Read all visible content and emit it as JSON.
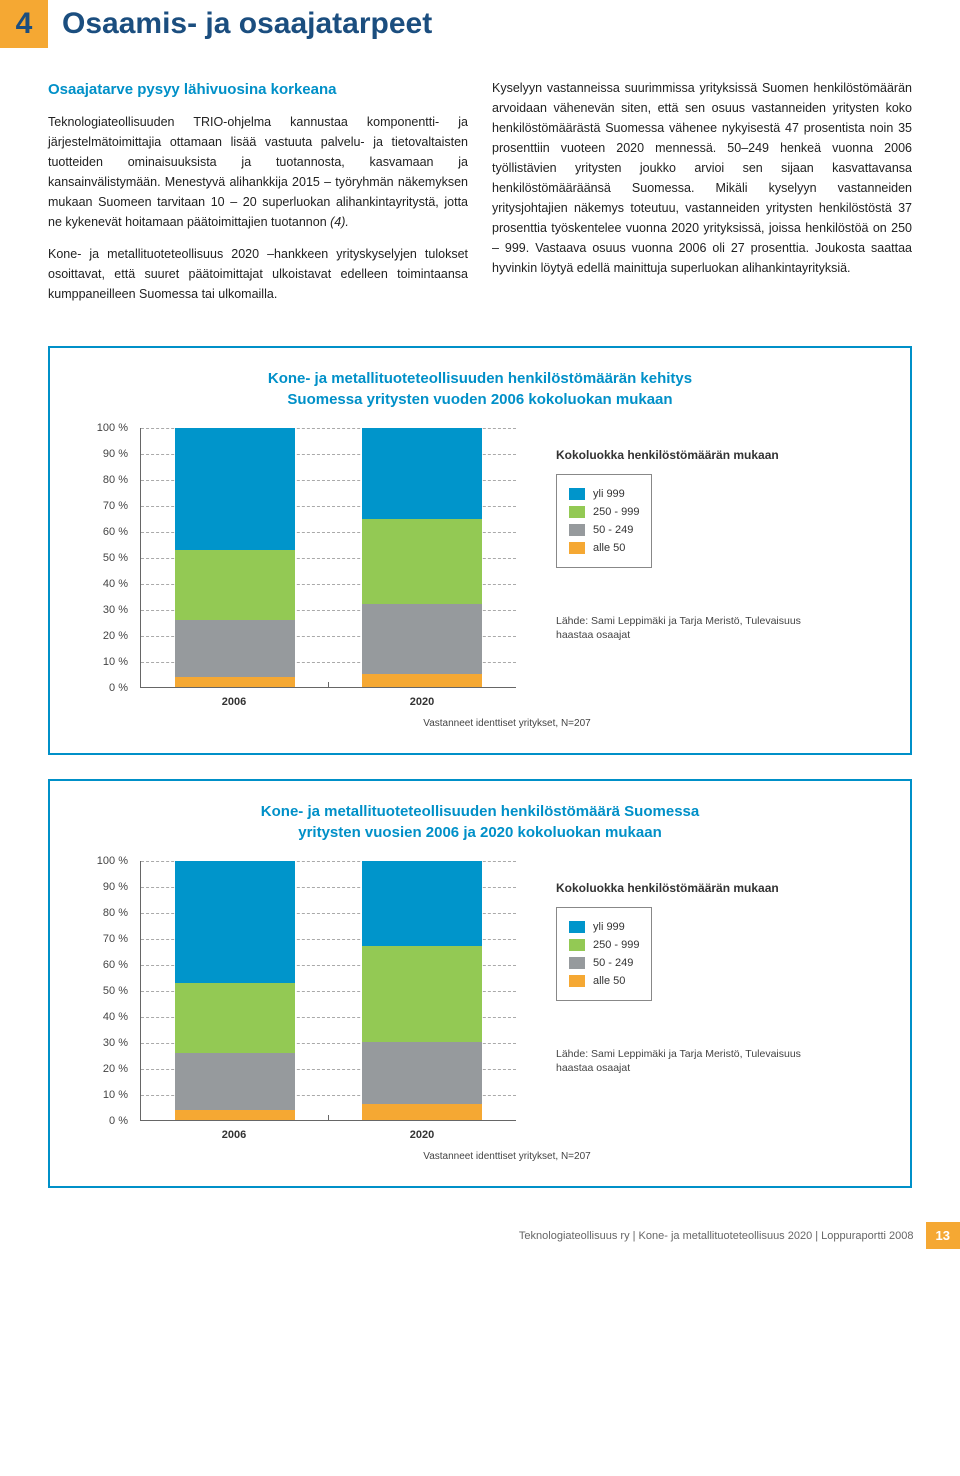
{
  "header": {
    "number": "4",
    "title": "Osaamis- ja osaajatarpeet"
  },
  "text": {
    "subheading": "Osaajatarve pysyy lähivuosina korkeana",
    "left_p1": "Teknologiateollisuuden TRIO-ohjelma kannustaa komponentti- ja järjestelmätoimittajia ottamaan lisää vastuuta palvelu- ja tietovaltaisten tuotteiden ominaisuuksista ja tuotannosta, kasvamaan ja kansainvälistymään. Menestyvä alihankkija 2015 – työryhmän näkemyksen mukaan Suomeen tarvitaan 10 – 20 superluokan alihankintayritystä, jotta ne kykenevät hoitamaan päätoimittajien tuotannon ",
    "left_italic": "(4).",
    "left_p2": "Kone- ja metallituoteteollisuus 2020 –hankkeen yrityskyselyjen tulokset osoittavat, että suuret päätoimittajat ulkoistavat edelleen toimintaansa kumppaneilleen Suomessa tai ulkomailla.",
    "right_p1": "Kyselyyn vastanneissa suurimmissa yrityksissä Suomen henkilöstömäärän arvoidaan vähenevän siten, että sen osuus vastanneiden yritysten koko henkilöstömäärästä Suomessa vähenee nykyisestä 47 prosentista noin 35 prosenttiin vuoteen 2020 mennessä. 50–249 henkeä vuonna 2006 työllistävien yritysten joukko arvioi sen sijaan kasvattavansa henkilöstömääräänsä Suomessa. Mikäli kyselyyn vastanneiden yritysjohtajien näkemys toteutuu, vastanneiden yritysten henkilöstöstä 37 prosenttia työskentelee vuonna 2020 yrityksissä, joissa henkilöstöä on 250 – 999. Vastaava osuus vuonna 2006 oli 27 prosenttia. Joukosta saattaa hyvinkin löytyä edellä mainittuja superluokan alihankintayrityksiä."
  },
  "chart1": {
    "title_line1": "Kone- ja metallituoteteollisuuden henkilöstömäärän kehitys",
    "title_line2": "Suomessa yritysten vuoden 2006 kokoluokan mukaan",
    "ylim": [
      0,
      100
    ],
    "ytick_step": 10,
    "y_suffix": " %",
    "x_labels": [
      "2006",
      "2020"
    ],
    "x_caption": "Vastanneet identtiset yritykset, N=207",
    "series": [
      {
        "label": "yli 999",
        "color": "#0095cb"
      },
      {
        "label": "250 - 999",
        "color": "#93c954"
      },
      {
        "label": "50 - 249",
        "color": "#969a9d"
      },
      {
        "label": "alle 50",
        "color": "#f5a833"
      }
    ],
    "bars": [
      {
        "x": "2006",
        "segments": [
          {
            "series": 3,
            "value": 4
          },
          {
            "series": 2,
            "value": 22
          },
          {
            "series": 1,
            "value": 27
          },
          {
            "series": 0,
            "value": 47
          }
        ]
      },
      {
        "x": "2020",
        "segments": [
          {
            "series": 3,
            "value": 5
          },
          {
            "series": 2,
            "value": 27
          },
          {
            "series": 1,
            "value": 33
          },
          {
            "series": 0,
            "value": 35
          }
        ]
      }
    ],
    "legend_title": "Kokoluokka henkilöstömäärän mukaan",
    "source": "Lähde: Sami Leppimäki ja Tarja Meristö, Tulevaisuus haastaa osaajat"
  },
  "chart2": {
    "title_line1": "Kone- ja metallituoteteollisuuden henkilöstömäärä Suomessa",
    "title_line2": "yritysten vuosien 2006 ja 2020 kokoluokan mukaan",
    "ylim": [
      0,
      100
    ],
    "ytick_step": 10,
    "y_suffix": " %",
    "x_labels": [
      "2006",
      "2020"
    ],
    "x_caption": "Vastanneet identtiset yritykset, N=207",
    "series": [
      {
        "label": "yli 999",
        "color": "#0095cb"
      },
      {
        "label": "250 - 999",
        "color": "#93c954"
      },
      {
        "label": "50 - 249",
        "color": "#969a9d"
      },
      {
        "label": "alle 50",
        "color": "#f5a833"
      }
    ],
    "bars": [
      {
        "x": "2006",
        "segments": [
          {
            "series": 3,
            "value": 4
          },
          {
            "series": 2,
            "value": 22
          },
          {
            "series": 1,
            "value": 27
          },
          {
            "series": 0,
            "value": 47
          }
        ]
      },
      {
        "x": "2020",
        "segments": [
          {
            "series": 3,
            "value": 6
          },
          {
            "series": 2,
            "value": 24
          },
          {
            "series": 1,
            "value": 37
          },
          {
            "series": 0,
            "value": 33
          }
        ]
      }
    ],
    "legend_title": "Kokoluokka henkilöstömäärän mukaan",
    "source": "Lähde: Sami Leppimäki ja Tarja Meristö, Tulevaisuus haastaa osaajat"
  },
  "footer": {
    "text": "Teknologiateollisuus ry | Kone- ja metallituoteteollisuus 2020 | Loppuraportti 2008",
    "page": "13"
  }
}
